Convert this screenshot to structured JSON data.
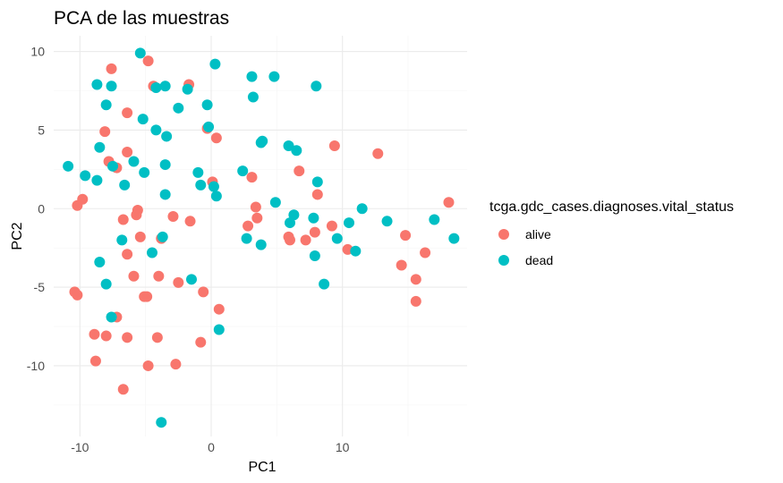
{
  "chart_data": {
    "type": "scatter",
    "title": "PCA de las muestras",
    "xlabel": "PC1",
    "ylabel": "PC2",
    "xlim": [
      -12,
      19.5
    ],
    "ylim": [
      -14.5,
      11
    ],
    "xticks": [
      -10,
      0,
      10
    ],
    "yticks": [
      -10,
      -5,
      0,
      5,
      10
    ],
    "grid": true,
    "legend": {
      "title": "tcga.gdc_cases.diagnoses.vital_status",
      "position": "right"
    },
    "series": [
      {
        "name": "alive",
        "color": "#F8766D",
        "points": [
          [
            -7.6,
            8.9
          ],
          [
            -4.8,
            9.4
          ],
          [
            -1.7,
            7.9
          ],
          [
            -6.4,
            6.1
          ],
          [
            -4.4,
            7.8
          ],
          [
            -0.3,
            5.1
          ],
          [
            0.4,
            4.5
          ],
          [
            -8.1,
            4.9
          ],
          [
            -6.4,
            3.6
          ],
          [
            -7.8,
            3.0
          ],
          [
            -7.2,
            2.6
          ],
          [
            9.4,
            4.0
          ],
          [
            12.7,
            3.5
          ],
          [
            6.7,
            2.4
          ],
          [
            3.1,
            2.0
          ],
          [
            0.1,
            1.7
          ],
          [
            -9.8,
            0.6
          ],
          [
            -10.2,
            0.2
          ],
          [
            3.4,
            0.1
          ],
          [
            8.1,
            0.9
          ],
          [
            -5.6,
            -0.1
          ],
          [
            -5.7,
            -0.4
          ],
          [
            -2.9,
            -0.5
          ],
          [
            -6.7,
            -0.7
          ],
          [
            -1.6,
            -0.8
          ],
          [
            3.5,
            -0.6
          ],
          [
            2.8,
            -1.1
          ],
          [
            9.2,
            -1.1
          ],
          [
            -5.4,
            -1.8
          ],
          [
            -3.8,
            -1.9
          ],
          [
            5.9,
            -1.8
          ],
          [
            6.0,
            -2.0
          ],
          [
            7.2,
            -2.0
          ],
          [
            7.9,
            -1.5
          ],
          [
            10.4,
            -2.6
          ],
          [
            14.8,
            -1.7
          ],
          [
            18.1,
            0.4
          ],
          [
            16.3,
            -2.8
          ],
          [
            14.5,
            -3.6
          ],
          [
            -6.4,
            -2.9
          ],
          [
            -5.9,
            -4.3
          ],
          [
            -4.0,
            -4.3
          ],
          [
            15.6,
            -4.5
          ],
          [
            -10.4,
            -5.3
          ],
          [
            -10.2,
            -5.5
          ],
          [
            -5.1,
            -5.6
          ],
          [
            -4.9,
            -5.6
          ],
          [
            -2.5,
            -4.7
          ],
          [
            -0.6,
            -5.3
          ],
          [
            0.6,
            -6.4
          ],
          [
            15.6,
            -5.9
          ],
          [
            -7.2,
            -6.9
          ],
          [
            -8.9,
            -8.0
          ],
          [
            -8.0,
            -8.1
          ],
          [
            -6.4,
            -8.2
          ],
          [
            -4.1,
            -8.2
          ],
          [
            -0.8,
            -8.5
          ],
          [
            -8.8,
            -9.7
          ],
          [
            -4.8,
            -10.0
          ],
          [
            -2.7,
            -9.9
          ],
          [
            -6.7,
            -11.5
          ]
        ]
      },
      {
        "name": "dead",
        "color": "#00BFC4",
        "points": [
          [
            -5.4,
            9.9
          ],
          [
            0.3,
            9.2
          ],
          [
            3.1,
            8.4
          ],
          [
            4.8,
            8.4
          ],
          [
            -8.7,
            7.9
          ],
          [
            -7.6,
            7.8
          ],
          [
            -3.5,
            7.8
          ],
          [
            -1.8,
            7.6
          ],
          [
            8.0,
            7.8
          ],
          [
            -4.2,
            7.7
          ],
          [
            3.2,
            7.1
          ],
          [
            -8.0,
            6.6
          ],
          [
            -0.3,
            6.6
          ],
          [
            -2.5,
            6.4
          ],
          [
            -5.2,
            5.7
          ],
          [
            -0.2,
            5.2
          ],
          [
            -4.2,
            5.0
          ],
          [
            -3.4,
            4.6
          ],
          [
            3.9,
            4.3
          ],
          [
            3.8,
            4.2
          ],
          [
            5.9,
            4.0
          ],
          [
            6.5,
            3.7
          ],
          [
            -8.5,
            3.9
          ],
          [
            -5.9,
            3.0
          ],
          [
            -7.5,
            2.7
          ],
          [
            -3.5,
            2.8
          ],
          [
            -10.9,
            2.7
          ],
          [
            -5.1,
            2.3
          ],
          [
            -1.0,
            2.3
          ],
          [
            -9.6,
            2.1
          ],
          [
            2.4,
            2.4
          ],
          [
            8.1,
            1.7
          ],
          [
            -8.7,
            1.8
          ],
          [
            -6.6,
            1.5
          ],
          [
            -0.8,
            1.5
          ],
          [
            0.2,
            1.4
          ],
          [
            0.4,
            0.8
          ],
          [
            -3.5,
            0.9
          ],
          [
            4.9,
            0.4
          ],
          [
            11.5,
            0.0
          ],
          [
            6.3,
            -0.4
          ],
          [
            7.8,
            -0.6
          ],
          [
            6.0,
            -0.9
          ],
          [
            10.5,
            -0.9
          ],
          [
            13.4,
            -0.8
          ],
          [
            17.0,
            -0.7
          ],
          [
            -3.7,
            -1.8
          ],
          [
            2.7,
            -1.9
          ],
          [
            3.8,
            -2.3
          ],
          [
            9.6,
            -1.9
          ],
          [
            -6.8,
            -2.0
          ],
          [
            11.0,
            -2.7
          ],
          [
            -4.5,
            -2.8
          ],
          [
            18.5,
            -1.9
          ],
          [
            7.9,
            -3.0
          ],
          [
            -8.5,
            -3.4
          ],
          [
            -1.5,
            -4.5
          ],
          [
            -8.0,
            -4.8
          ],
          [
            8.6,
            -4.8
          ],
          [
            -7.6,
            -6.9
          ],
          [
            0.6,
            -7.7
          ],
          [
            -3.8,
            -13.6
          ]
        ]
      }
    ]
  }
}
